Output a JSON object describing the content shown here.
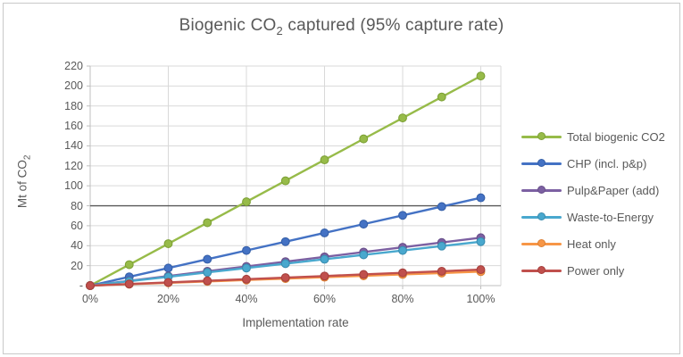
{
  "title": {
    "pre": "Biogenic CO",
    "sub": "2",
    "post": " captured (95% capture rate)"
  },
  "axes": {
    "x_title": "Implementation rate",
    "y_title_pre": "Mt of CO",
    "y_title_sub": "2"
  },
  "colors": {
    "gridline": "#d9d9d9",
    "axis_line": "#bfbfbf",
    "text": "#595959",
    "reference_line": "#595959"
  },
  "chart_data": {
    "type": "line",
    "x": [
      0,
      10,
      20,
      30,
      40,
      50,
      60,
      70,
      80,
      90,
      100
    ],
    "x_unit": "%",
    "xlim": [
      0,
      105
    ],
    "ylim": [
      0,
      220
    ],
    "grid": true,
    "legend_position": "right",
    "title": "Biogenic CO2 captured (95% capture rate)",
    "xlabel": "Implementation rate",
    "ylabel": "Mt of CO2",
    "x_ticks": [
      {
        "label": "0%",
        "value": 0
      },
      {
        "label": "20%",
        "value": 20
      },
      {
        "label": "40%",
        "value": 40
      },
      {
        "label": "60%",
        "value": 60
      },
      {
        "label": "80%",
        "value": 80
      },
      {
        "label": "100%",
        "value": 100
      }
    ],
    "y_ticks": [
      {
        "label": "220",
        "value": 220
      },
      {
        "label": "200",
        "value": 200
      },
      {
        "label": "180",
        "value": 180
      },
      {
        "label": "160",
        "value": 160
      },
      {
        "label": "140",
        "value": 140
      },
      {
        "label": "120",
        "value": 120
      },
      {
        "label": "100",
        "value": 100
      },
      {
        "label": "80",
        "value": 80
      },
      {
        "label": "60",
        "value": 60
      },
      {
        "label": "40",
        "value": 40
      },
      {
        "label": "20",
        "value": 20
      },
      {
        "label": "-",
        "value": 0
      }
    ],
    "reference_line": {
      "value": 80,
      "color": "#595959"
    },
    "series": [
      {
        "name": "Total biogenic CO2",
        "color": "#97bb49",
        "marker_border": "#7da136",
        "values": [
          0,
          21,
          42,
          63,
          84,
          105,
          126,
          147,
          168,
          189,
          210
        ]
      },
      {
        "name": "CHP (incl. p&p)",
        "color": "#4472c4",
        "marker_border": "#355fa8",
        "values": [
          0,
          8.8,
          17.6,
          26.4,
          35.2,
          44,
          52.8,
          61.6,
          70.4,
          79.2,
          88
        ]
      },
      {
        "name": "Pulp&Paper (add)",
        "color": "#7c60a2",
        "marker_border": "#684f8a",
        "values": [
          0,
          4.8,
          9.6,
          14.4,
          19.2,
          24,
          28.8,
          33.6,
          38.4,
          43.2,
          48
        ]
      },
      {
        "name": "Waste-to-Energy",
        "color": "#49a8ce",
        "marker_border": "#3a8db0",
        "values": [
          0,
          4.4,
          8.8,
          13.2,
          17.6,
          22,
          26.4,
          30.8,
          35.2,
          39.6,
          44
        ]
      },
      {
        "name": "Heat only",
        "color": "#f79646",
        "marker_border": "#dd8136",
        "values": [
          0,
          1.4,
          2.8,
          4.2,
          5.6,
          7,
          8.4,
          9.8,
          11.2,
          12.6,
          14
        ]
      },
      {
        "name": "Power only",
        "color": "#c0504d",
        "marker_border": "#a6403d",
        "values": [
          0,
          1.6,
          3.2,
          4.8,
          6.4,
          8,
          9.6,
          11.2,
          12.8,
          14.4,
          16
        ]
      }
    ]
  }
}
